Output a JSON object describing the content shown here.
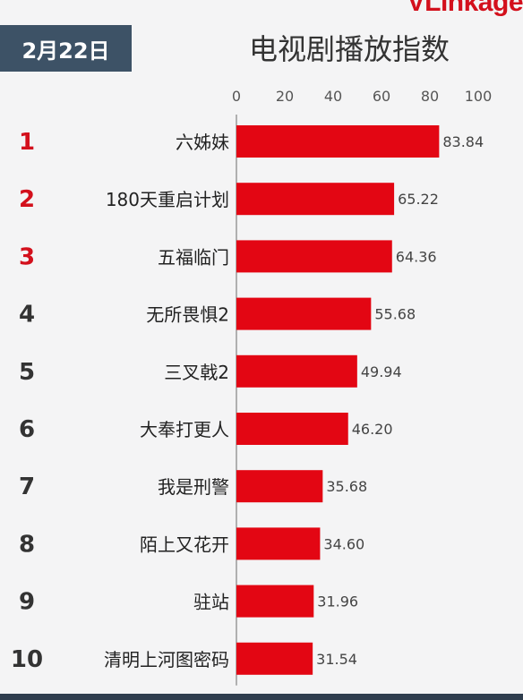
{
  "brand": "VLinkage",
  "date": "2月22日",
  "chart_data": {
    "type": "bar",
    "orientation": "horizontal",
    "title": "电视剧播放指数",
    "xlim": [
      0,
      100
    ],
    "xticks": [
      0,
      20,
      40,
      60,
      80,
      100
    ],
    "grid": false,
    "colors": {
      "bar": "#e30613",
      "rank_top": "#d3101c",
      "rank": "#333333"
    },
    "categories": [
      "六姊妹",
      "180天重启计划",
      "五福临门",
      "无所畏惧2",
      "三叉戟2",
      "大奉打更人",
      "我是刑警",
      "陌上又花开",
      "驻站",
      "清明上河图密码"
    ],
    "ranks": [
      "1",
      "2",
      "3",
      "4",
      "5",
      "6",
      "7",
      "8",
      "9",
      "10"
    ],
    "values": [
      83.84,
      65.22,
      64.36,
      55.68,
      49.94,
      46.2,
      35.68,
      34.6,
      31.96,
      31.54
    ],
    "value_labels": [
      "83.84",
      "65.22",
      "64.36",
      "55.68",
      "49.94",
      "46.20",
      "35.68",
      "34.60",
      "31.96",
      "31.54"
    ]
  }
}
